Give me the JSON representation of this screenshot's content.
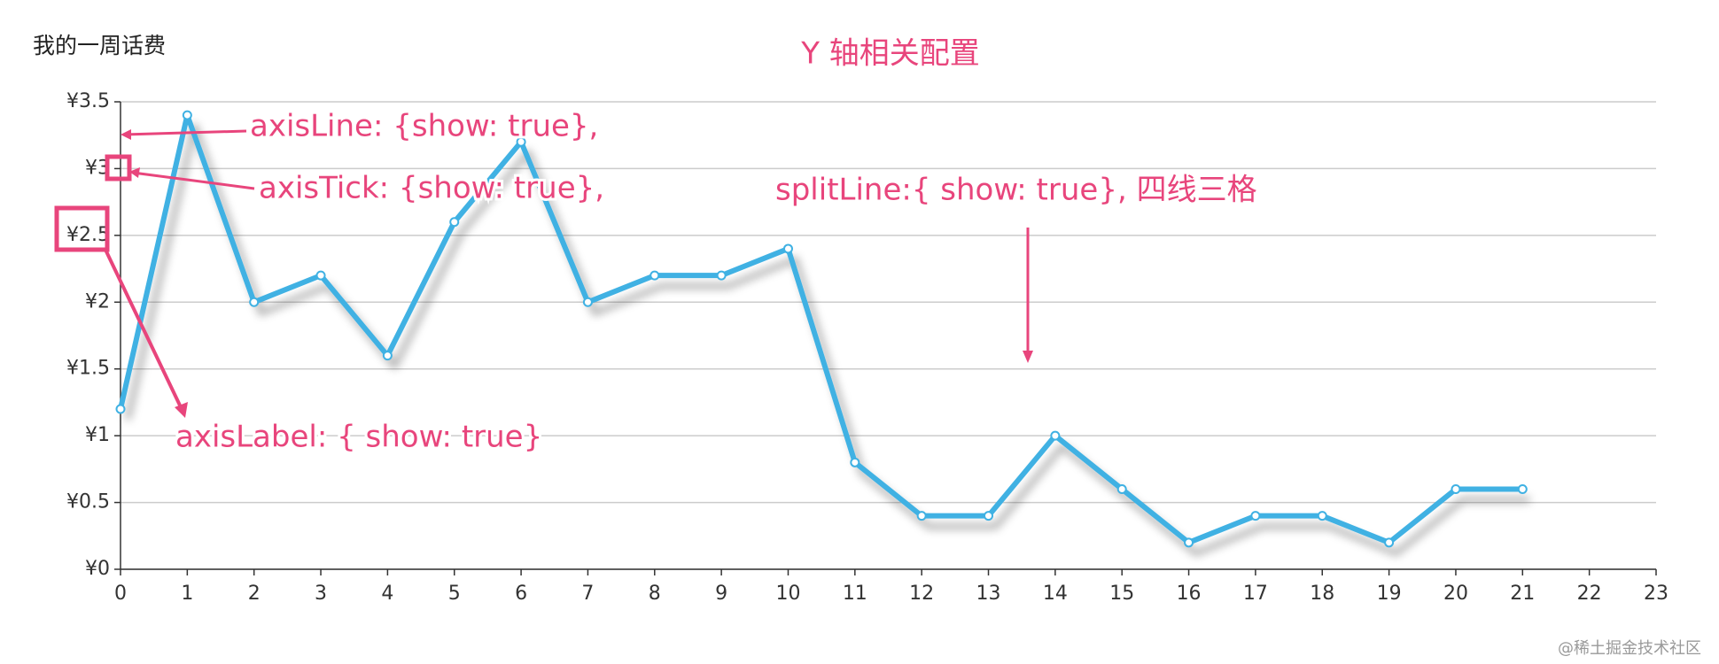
{
  "chart_data": {
    "type": "line",
    "title": "Y 轴相关配置",
    "subtitle": "我的一周话费",
    "categories": [
      "0",
      "1",
      "2",
      "3",
      "4",
      "5",
      "6",
      "7",
      "8",
      "9",
      "10",
      "11",
      "12",
      "13",
      "14",
      "15",
      "16",
      "17",
      "18",
      "19",
      "20",
      "21",
      "22",
      "23"
    ],
    "values": [
      1.2,
      3.4,
      2.0,
      2.2,
      1.6,
      2.6,
      3.2,
      2.0,
      2.2,
      2.2,
      2.4,
      0.8,
      0.4,
      0.4,
      1.0,
      0.6,
      0.2,
      0.4,
      0.4,
      0.2,
      0.6,
      0.6,
      null,
      null
    ],
    "color": "#3fb1e3",
    "ylim": [
      0,
      3.5
    ],
    "yticks": [
      {
        "value": 0,
        "label": "¥0"
      },
      {
        "value": 0.5,
        "label": "¥0.5"
      },
      {
        "value": 1,
        "label": "¥1"
      },
      {
        "value": 1.5,
        "label": "¥1.5"
      },
      {
        "value": 2,
        "label": "¥2"
      },
      {
        "value": 2.5,
        "label": "¥2.5"
      },
      {
        "value": 3,
        "label": "¥3"
      },
      {
        "value": 3.5,
        "label": "¥3.5"
      }
    ],
    "grid": true,
    "annotations": [
      {
        "text": "axisLine: {show: true},"
      },
      {
        "text": "axisTick: {show: true},"
      },
      {
        "text": "axisLabel: { show: true}"
      },
      {
        "text": "splitLine:{ show: true}, 四线三格"
      }
    ],
    "watermark": "@稀土掘金技术社区"
  }
}
